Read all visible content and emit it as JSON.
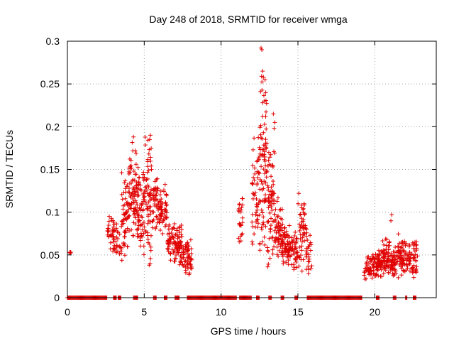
{
  "chart_data": {
    "type": "scatter",
    "title": "Day 248 of 2018, SRMTID for receiver wmga",
    "xlabel": "GPS time / hours",
    "ylabel": "SRMTID / TECUs",
    "xlim": [
      0,
      24
    ],
    "ylim": [
      0,
      0.3
    ],
    "x_ticks": [
      0,
      5,
      10,
      15,
      20
    ],
    "y_ticks": [
      0,
      0.05,
      0.1,
      0.15,
      0.2,
      0.25,
      0.3
    ],
    "x_tick_labels": [
      "0",
      "5",
      "10",
      "15",
      "20"
    ],
    "y_tick_labels": [
      "0",
      "0.05",
      "0.1",
      "0.15",
      "0.2",
      "0.25",
      "0.3"
    ],
    "grid": true,
    "marker": "+",
    "series": [
      {
        "name": "SRMTID",
        "color": "#e00000",
        "clusters": [
          {
            "x_start": 0.1,
            "x_end": 0.3,
            "y_min": 0.05,
            "y_max": 0.055,
            "count": 4
          },
          {
            "x_start": 2.6,
            "x_end": 3.0,
            "y_min": 0.05,
            "y_max": 0.1,
            "count": 30
          },
          {
            "x_start": 3.0,
            "x_end": 3.5,
            "y_min": 0.04,
            "y_max": 0.09,
            "count": 30
          },
          {
            "x_start": 3.5,
            "x_end": 4.0,
            "y_min": 0.04,
            "y_max": 0.15,
            "count": 60
          },
          {
            "x_start": 4.0,
            "x_end": 4.5,
            "y_min": 0.06,
            "y_max": 0.19,
            "count": 70
          },
          {
            "x_start": 4.5,
            "x_end": 5.0,
            "y_min": 0.05,
            "y_max": 0.16,
            "count": 70
          },
          {
            "x_start": 5.0,
            "x_end": 5.5,
            "y_min": 0.035,
            "y_max": 0.19,
            "count": 70
          },
          {
            "x_start": 5.5,
            "x_end": 6.0,
            "y_min": 0.07,
            "y_max": 0.15,
            "count": 50
          },
          {
            "x_start": 6.0,
            "x_end": 6.5,
            "y_min": 0.07,
            "y_max": 0.135,
            "count": 50
          },
          {
            "x_start": 6.5,
            "x_end": 7.0,
            "y_min": 0.04,
            "y_max": 0.09,
            "count": 50
          },
          {
            "x_start": 7.0,
            "x_end": 7.5,
            "y_min": 0.03,
            "y_max": 0.09,
            "count": 60
          },
          {
            "x_start": 7.5,
            "x_end": 8.1,
            "y_min": 0.025,
            "y_max": 0.07,
            "count": 60
          },
          {
            "x_start": 11.1,
            "x_end": 11.4,
            "y_min": 0.06,
            "y_max": 0.12,
            "count": 25
          },
          {
            "x_start": 12.0,
            "x_end": 12.5,
            "y_min": 0.06,
            "y_max": 0.2,
            "count": 50
          },
          {
            "x_start": 12.5,
            "x_end": 13.0,
            "y_min": 0.03,
            "y_max": 0.29,
            "count": 80
          },
          {
            "x_start": 13.0,
            "x_end": 13.5,
            "y_min": 0.03,
            "y_max": 0.19,
            "count": 70
          },
          {
            "x_start": 13.5,
            "x_end": 14.0,
            "y_min": 0.04,
            "y_max": 0.12,
            "count": 60
          },
          {
            "x_start": 14.0,
            "x_end": 14.5,
            "y_min": 0.03,
            "y_max": 0.085,
            "count": 60
          },
          {
            "x_start": 14.5,
            "x_end": 15.0,
            "y_min": 0.03,
            "y_max": 0.08,
            "count": 40
          },
          {
            "x_start": 15.0,
            "x_end": 15.5,
            "y_min": 0.03,
            "y_max": 0.125,
            "count": 50
          },
          {
            "x_start": 15.5,
            "x_end": 15.9,
            "y_min": 0.025,
            "y_max": 0.085,
            "count": 30
          },
          {
            "x_start": 19.3,
            "x_end": 19.8,
            "y_min": 0.02,
            "y_max": 0.05,
            "count": 40
          },
          {
            "x_start": 19.8,
            "x_end": 20.5,
            "y_min": 0.02,
            "y_max": 0.06,
            "count": 70
          },
          {
            "x_start": 20.5,
            "x_end": 21.0,
            "y_min": 0.025,
            "y_max": 0.07,
            "count": 60
          },
          {
            "x_start": 21.0,
            "x_end": 21.5,
            "y_min": 0.02,
            "y_max": 0.06,
            "count": 50
          },
          {
            "x_start": 21.5,
            "x_end": 22.0,
            "y_min": 0.02,
            "y_max": 0.075,
            "count": 60
          },
          {
            "x_start": 22.0,
            "x_end": 22.8,
            "y_min": 0.02,
            "y_max": 0.07,
            "count": 70
          }
        ],
        "outliers": [
          [
            12.6,
            0.292
          ],
          [
            12.65,
            0.29
          ],
          [
            12.7,
            0.265
          ],
          [
            12.75,
            0.258
          ],
          [
            12.8,
            0.23
          ],
          [
            12.7,
            0.228
          ],
          [
            12.9,
            0.212
          ],
          [
            13.4,
            0.215
          ],
          [
            13.5,
            0.205
          ],
          [
            13.45,
            0.198
          ],
          [
            4.3,
            0.188
          ],
          [
            5.4,
            0.19
          ],
          [
            5.35,
            0.185
          ],
          [
            21.1,
            0.097
          ],
          [
            21.05,
            0.09
          ]
        ],
        "zero_ranges": [
          [
            0.0,
            2.6
          ],
          [
            3.0,
            3.2
          ],
          [
            3.3,
            3.5
          ],
          [
            4.3,
            4.6
          ],
          [
            5.6,
            5.8
          ],
          [
            6.3,
            6.5
          ],
          [
            7.0,
            7.3
          ],
          [
            7.8,
            11.0
          ],
          [
            11.2,
            12.0
          ],
          [
            12.3,
            12.5
          ],
          [
            13.1,
            13.3
          ],
          [
            13.9,
            14.1
          ],
          [
            14.8,
            15.0
          ],
          [
            15.6,
            19.2
          ],
          [
            20.1,
            20.3
          ],
          [
            21.2,
            21.4
          ],
          [
            22.0,
            22.1
          ],
          [
            22.5,
            22.7
          ]
        ]
      }
    ]
  }
}
